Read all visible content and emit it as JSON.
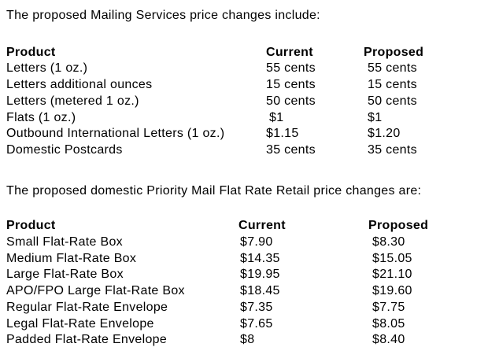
{
  "intro1": "The proposed Mailing Services price changes include:",
  "intro2": "The proposed domestic Priority Mail Flat Rate Retail price changes are:",
  "colors": {
    "text": "#000000",
    "background": "#ffffff"
  },
  "mailing_services_table": {
    "headers": [
      "Product",
      "Current",
      "Proposed"
    ],
    "rows": [
      [
        "Letters (1 oz.)",
        "55 cents",
        "55 cents"
      ],
      [
        "Letters additional ounces",
        "15 cents",
        "15 cents"
      ],
      [
        "Letters (metered 1 oz.)",
        "50 cents",
        "50 cents"
      ],
      [
        "Flats (1 oz.)",
        "$1",
        "$1"
      ],
      [
        "Outbound International Letters (1 oz.)",
        "$1.15",
        "$1.20"
      ],
      [
        "Domestic Postcards",
        "35 cents",
        "35 cents"
      ]
    ]
  },
  "priority_mail_table": {
    "headers": [
      "Product",
      "Current",
      "Proposed"
    ],
    "rows": [
      [
        "Small Flat-Rate Box",
        "$7.90",
        "$8.30"
      ],
      [
        "Medium Flat-Rate Box",
        "$14.35",
        "$15.05"
      ],
      [
        "Large Flat-Rate Box",
        "$19.95",
        "$21.10"
      ],
      [
        "APO/FPO Large Flat-Rate Box",
        "$18.45",
        "$19.60"
      ],
      [
        "Regular Flat-Rate Envelope",
        "$7.35",
        "$7.75"
      ],
      [
        "Legal Flat-Rate Envelope",
        "$7.65",
        "$8.05"
      ],
      [
        "Padded Flat-Rate Envelope",
        "$8",
        "$8.40"
      ]
    ]
  }
}
